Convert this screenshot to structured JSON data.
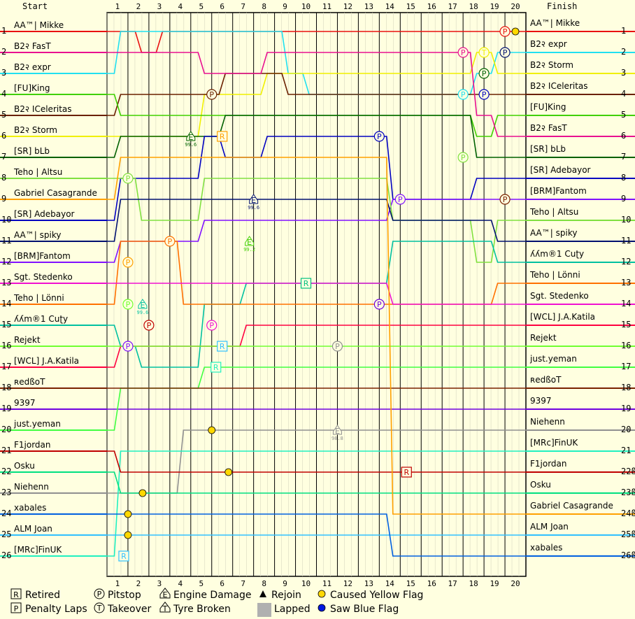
{
  "chart_data": {
    "type": "line",
    "header_start": "Start",
    "header_finish": "Finish",
    "laps": [
      "1",
      "2",
      "3",
      "4",
      "5",
      "6",
      "7",
      "8",
      "9",
      "10",
      "11",
      "12",
      "13",
      "14",
      "15",
      "16",
      "17",
      "18",
      "19",
      "20"
    ],
    "start_positions": [
      "1",
      "2",
      "3",
      "4",
      "5",
      "6",
      "7",
      "8",
      "9",
      "10",
      "11",
      "12",
      "13",
      "14",
      "15",
      "16",
      "17",
      "18",
      "19",
      "20",
      "21",
      "22",
      "23",
      "24",
      "25",
      "26"
    ],
    "finish_positions": [
      "1",
      "2",
      "3",
      "4",
      "5",
      "6",
      "7",
      "8",
      "9",
      "10",
      "11",
      "12",
      "13",
      "14",
      "15",
      "16",
      "17",
      "18",
      "19",
      "20",
      "21",
      "22ß",
      "23ß",
      "24ß",
      "25ß",
      "26ß"
    ],
    "start_grid": [
      "AA™| Mikke",
      "B2२ FasT",
      "B2२ expr",
      "[FU]King",
      "B2२ ICeleritas",
      "B2२ Storm",
      "[SR] bLb",
      "Teho | Altsu",
      "Gabriel Casagrande",
      "[SR] Adebayor",
      "AA™| spiky",
      "[BRM]Fantom",
      "Sgt. Stedenko",
      "Teho | Lönni",
      "ʎʎm®1 Cuʈy",
      "Rejekt",
      "[WCL] J.A.Katila",
      "ʀedßoT",
      "9397",
      "just.yeman",
      "F1jordan",
      "Osku",
      "Niehenn",
      "xabales",
      "ALM Joan",
      "[MRc]FinUK"
    ],
    "finish_order": [
      "AA™| Mikke",
      "B2२ expr",
      "B2२ Storm",
      "B2२ ICeleritas",
      "[FU]King",
      "B2२ FasT",
      "[SR] bLb",
      "[SR] Adebayor",
      "[BRM]Fantom",
      "Teho | Altsu",
      "AA™| spiky",
      "ʎʎm®1 Cuʈy",
      "Teho | Lönni",
      "Sgt. Stedenko",
      "[WCL] J.A.Katila",
      "Rejekt",
      "just.yeman",
      "ʀedßoT",
      "9397",
      "Niehenn",
      "[MRc]FinUK",
      "F1jordan",
      "Osku",
      "Gabriel Casagrande",
      "ALM Joan",
      "xabales"
    ],
    "driver_colors": {
      "AA™| Mikke": "#e81010",
      "B2२ FasT": "#e81090",
      "B2२ expr": "#20e0f0",
      "[FU]King": "#40d000",
      "B2२ ICeleritas": "#6a2000",
      "B2२ Storm": "#f0f000",
      "[SR] bLb": "#006000",
      "Teho | Altsu": "#80e040",
      "Gabriel Casagrande": "#ffa000",
      "[SR] Adebayor": "#0000c0",
      "AA™| spiky": "#001070",
      "[BRM]Fantom": "#8010ff",
      "Sgt. Stedenko": "#f010d0",
      "Teho | Lönni": "#ff7000",
      "ʎʎm®1 Cuʈy": "#00c0a0",
      "Rejekt": "#70ff30",
      "[WCL] J.A.Katila": "#ff0040",
      "ʀedßoT": "#7a2000",
      "9397": "#7000e0",
      "just.yeman": "#40ff40",
      "F1jordan": "#c00000",
      "Osku": "#00e080",
      "Niehenn": "#909090",
      "xabales": "#0060e0",
      "ALM Joan": "#30c0ff",
      "[MRc]FinUK": "#20f0c0"
    },
    "positions_by_lap": {
      "AA™| Mikke": [
        1,
        1,
        2,
        1,
        1,
        1,
        1,
        1,
        1,
        1,
        1,
        1,
        1,
        1,
        1,
        1,
        1,
        1,
        1,
        1,
        1
      ],
      "B2२ expr": [
        3,
        1,
        1,
        1,
        1,
        1,
        1,
        1,
        1,
        3,
        4,
        4,
        4,
        4,
        4,
        4,
        4,
        4,
        3,
        2,
        2
      ],
      "B2२ Storm": [
        6,
        6,
        6,
        6,
        6,
        4,
        4,
        4,
        3,
        3,
        3,
        3,
        3,
        3,
        3,
        3,
        3,
        3,
        2,
        3,
        3
      ],
      "B2२ ICeleritas": [
        5,
        4,
        4,
        4,
        4,
        4,
        3,
        3,
        3,
        4,
        4,
        4,
        4,
        4,
        4,
        4,
        4,
        4,
        4,
        4,
        4
      ],
      "[FU]King": [
        4,
        5,
        5,
        5,
        5,
        5,
        5,
        5,
        5,
        5,
        5,
        5,
        5,
        5,
        5,
        5,
        5,
        5,
        6,
        5,
        5
      ],
      "B2२ FasT": [
        2,
        2,
        2,
        2,
        2,
        3,
        3,
        3,
        2,
        2,
        2,
        2,
        2,
        2,
        2,
        2,
        2,
        2,
        5,
        6,
        6
      ],
      "[SR] bLb": [
        7,
        6,
        6,
        6,
        6,
        6,
        5,
        5,
        5,
        5,
        5,
        5,
        5,
        5,
        5,
        5,
        5,
        5,
        7,
        7,
        7
      ],
      "[SR] Adebayor": [
        10,
        8,
        8,
        8,
        8,
        6,
        7,
        7,
        6,
        6,
        6,
        6,
        6,
        6,
        9,
        9,
        9,
        9,
        8,
        8,
        8
      ],
      "[BRM]Fantom": [
        12,
        11,
        11,
        11,
        11,
        10,
        10,
        10,
        10,
        10,
        10,
        10,
        10,
        10,
        9,
        9,
        9,
        9,
        9,
        9,
        9
      ],
      "Teho | Altsu": [
        8,
        8,
        10,
        10,
        10,
        8,
        8,
        8,
        8,
        8,
        8,
        8,
        8,
        8,
        10,
        10,
        10,
        10,
        12,
        10,
        10
      ],
      "AA™| spiky": [
        11,
        9,
        9,
        9,
        9,
        9,
        9,
        9,
        9,
        9,
        9,
        9,
        9,
        9,
        10,
        10,
        10,
        10,
        10,
        11,
        11
      ],
      "ʎʎm®1 Cuʈy": [
        15,
        16,
        17,
        17,
        17,
        14,
        14,
        13,
        13,
        13,
        13,
        13,
        13,
        13,
        11,
        11,
        11,
        11,
        11,
        12,
        12
      ],
      "Teho | Lönni": [
        14,
        11,
        11,
        11,
        14,
        14,
        14,
        14,
        14,
        14,
        14,
        14,
        14,
        14,
        14,
        14,
        14,
        14,
        14,
        13,
        13
      ],
      "Sgt. Stedenko": [
        13,
        13,
        13,
        13,
        13,
        13,
        13,
        13,
        13,
        13,
        13,
        13,
        13,
        13,
        14,
        14,
        14,
        14,
        14,
        14,
        14
      ],
      "[WCL] J.A.Katila": [
        17,
        16,
        16,
        16,
        16,
        16,
        16,
        15,
        15,
        15,
        15,
        15,
        15,
        15,
        15,
        15,
        15,
        15,
        15,
        15,
        15
      ],
      "Rejekt": [
        16,
        16,
        16,
        16,
        16,
        16,
        16,
        16,
        16,
        16,
        16,
        16,
        16,
        16,
        16,
        16,
        16,
        16,
        16,
        16,
        16
      ],
      "just.yeman": [
        20,
        18,
        18,
        18,
        18,
        17,
        17,
        17,
        17,
        17,
        17,
        17,
        17,
        17,
        17,
        17,
        17,
        17,
        17,
        17,
        17
      ],
      "ʀedßoT": [
        18,
        18,
        18,
        18,
        18,
        18,
        18,
        18,
        18,
        18,
        18,
        18,
        18,
        18,
        18,
        18,
        18,
        18,
        18,
        18,
        18
      ],
      "9397": [
        19,
        19,
        19,
        19,
        19,
        19,
        19,
        19,
        19,
        19,
        19,
        19,
        19,
        19,
        19,
        19,
        19,
        19,
        19,
        19,
        19
      ],
      "Niehenn": [
        23,
        23,
        23,
        23,
        20,
        20,
        20,
        20,
        20,
        20,
        20,
        20,
        20,
        20,
        20,
        20,
        20,
        20,
        20,
        20,
        20
      ],
      "[MRc]FinUK": [
        26,
        21,
        21,
        21,
        21,
        21,
        21,
        21,
        21,
        21,
        21,
        21,
        21,
        21,
        21,
        21,
        21,
        21,
        21,
        21,
        21
      ],
      "F1jordan": [
        21,
        22,
        22,
        22,
        22,
        22,
        22,
        22,
        22,
        22,
        22,
        22,
        22,
        22,
        22,
        22,
        22,
        22,
        22,
        22,
        22
      ],
      "Osku": [
        22,
        23,
        23,
        23,
        23,
        23,
        23,
        23,
        23,
        23,
        23,
        23,
        23,
        23,
        23,
        23,
        23,
        23,
        23,
        23,
        23
      ],
      "Gabriel Casagrande": [
        9,
        7,
        7,
        7,
        7,
        7,
        7,
        7,
        7,
        7,
        7,
        7,
        7,
        7,
        24,
        24,
        24,
        24,
        24,
        24,
        24
      ],
      "ALM Joan": [
        25,
        25,
        25,
        25,
        25,
        25,
        25,
        25,
        25,
        25,
        25,
        25,
        25,
        25,
        25,
        25,
        25,
        25,
        25,
        25,
        25
      ],
      "xabales": [
        24,
        24,
        24,
        24,
        24,
        24,
        24,
        24,
        24,
        24,
        24,
        24,
        24,
        24,
        26,
        26,
        26,
        26,
        26,
        26,
        26
      ]
    },
    "events": [
      {
        "type": "P",
        "lap": 19,
        "pos": 1,
        "color": "#e81010"
      },
      {
        "type": "Y",
        "lap": 19.5,
        "pos": 1,
        "color": "#ffd800"
      },
      {
        "type": "P",
        "lap": 17,
        "pos": 2,
        "color": "#e81090"
      },
      {
        "type": "T",
        "lap": 18,
        "pos": 2,
        "color": "#f0f000"
      },
      {
        "type": "P",
        "lap": 19,
        "pos": 2,
        "color": "#001070"
      },
      {
        "type": "P",
        "lap": 18,
        "pos": 3,
        "color": "#006000"
      },
      {
        "type": "P",
        "lap": 5,
        "pos": 4,
        "color": "#6a2000"
      },
      {
        "type": "P",
        "lap": 17,
        "pos": 4,
        "color": "#20e0f0"
      },
      {
        "type": "P",
        "lap": 18,
        "pos": 4,
        "color": "#0000c0"
      },
      {
        "type": "E",
        "lap": 4,
        "pos": 6,
        "color": "#006000",
        "label": "99.6"
      },
      {
        "type": "R",
        "lap": 5.5,
        "pos": 6,
        "color": "#ffa000"
      },
      {
        "type": "P",
        "lap": 13,
        "pos": 6,
        "color": "#0000c0"
      },
      {
        "type": "P",
        "lap": 17,
        "pos": 7,
        "color": "#80e040"
      },
      {
        "type": "P",
        "lap": 1,
        "pos": 8,
        "color": "#80e040"
      },
      {
        "type": "E",
        "lap": 7,
        "pos": 9,
        "color": "#001070",
        "label": "99.6"
      },
      {
        "type": "P",
        "lap": 14,
        "pos": 9,
        "color": "#8010ff"
      },
      {
        "type": "P",
        "lap": 19,
        "pos": 9,
        "color": "#7a2000"
      },
      {
        "type": "P",
        "lap": 3,
        "pos": 11,
        "color": "#ff7000"
      },
      {
        "type": "E",
        "lap": 6.8,
        "pos": 11,
        "color": "#40d000",
        "label": "99.2"
      },
      {
        "type": "P",
        "lap": 1,
        "pos": 12,
        "color": "#ffa000"
      },
      {
        "type": "R",
        "lap": 9.5,
        "pos": 13,
        "color": "#00c080"
      },
      {
        "type": "P",
        "lap": 1,
        "pos": 14,
        "color": "#70ff30"
      },
      {
        "type": "E",
        "lap": 1.7,
        "pos": 14,
        "color": "#00c0a0",
        "label": "99.6"
      },
      {
        "type": "P",
        "lap": 13,
        "pos": 14,
        "color": "#7000e0"
      },
      {
        "type": "P",
        "lap": 2,
        "pos": 15,
        "color": "#c00000"
      },
      {
        "type": "P",
        "lap": 5,
        "pos": 15,
        "color": "#f010d0"
      },
      {
        "type": "P",
        "lap": 1,
        "pos": 16,
        "color": "#8010ff"
      },
      {
        "type": "R",
        "lap": 5.5,
        "pos": 16,
        "color": "#30c0ff"
      },
      {
        "type": "P",
        "lap": 11,
        "pos": 16,
        "color": "#909090"
      },
      {
        "type": "R",
        "lap": 5.2,
        "pos": 17,
        "color": "#20f0c0"
      },
      {
        "type": "Y",
        "lap": 5,
        "pos": 20,
        "color": "#ffd800"
      },
      {
        "type": "E",
        "lap": 11,
        "pos": 20,
        "color": "#909090",
        "label": "98.8"
      },
      {
        "type": "Y",
        "lap": 5.8,
        "pos": 22,
        "color": "#ffd800"
      },
      {
        "type": "R",
        "lap": 14.3,
        "pos": 22,
        "color": "#c00000"
      },
      {
        "type": "Y",
        "lap": 1.7,
        "pos": 23,
        "color": "#ffd800"
      },
      {
        "type": "Y",
        "lap": 1,
        "pos": 24,
        "color": "#ffd800"
      },
      {
        "type": "Y",
        "lap": 1,
        "pos": 25,
        "color": "#ffd800"
      },
      {
        "type": "R",
        "lap": 0.8,
        "pos": 26,
        "color": "#30c0ff"
      }
    ],
    "legend": [
      {
        "key": "R",
        "label": "Retired"
      },
      {
        "key": "P",
        "label": "Pitstop"
      },
      {
        "key": "E",
        "label": "Engine Damage"
      },
      {
        "key": "rejoin",
        "label": "Rejoin"
      },
      {
        "key": "yellow",
        "label": "Caused Yellow Flag"
      },
      {
        "key": "penalty",
        "label": "Penalty Laps"
      },
      {
        "key": "T",
        "label": "Takeover"
      },
      {
        "key": "tyre",
        "label": "Tyre Broken"
      },
      {
        "key": "lapped",
        "label": "Lapped"
      },
      {
        "key": "blue",
        "label": "Saw Blue Flag"
      }
    ],
    "grid": true
  }
}
